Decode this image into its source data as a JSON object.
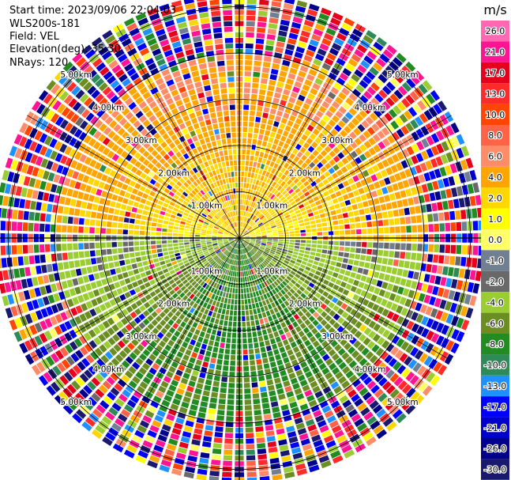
{
  "header": {
    "start_time": "Start time: 2023/09/06 22:04:03",
    "instrument": "WLS200s-181",
    "field": "Field: VEL",
    "elevation": "Elevation(deg): 35.30",
    "nrays": "NRays: 120"
  },
  "colorbar": {
    "unit": "m/s",
    "ticks": [
      "26.0",
      "21.0",
      "17.0",
      "13.0",
      "10.0",
      "8.0",
      "6.0",
      "4.0",
      "2.0",
      "1.0",
      "0.0",
      "-1.0",
      "-2.0",
      "-4.0",
      "-6.0",
      "-8.0",
      "-10.0",
      "-13.0",
      "-17.0",
      "-21.0",
      "-26.0",
      "-30.0"
    ],
    "colors": [
      "#ff69b4",
      "#ff1493",
      "#e6001c",
      "#ff2a2a",
      "#ff4500",
      "#ff6347",
      "#ff8c69",
      "#ffa500",
      "#ffd700",
      "#ffff00",
      "#ffff66",
      "#708090",
      "#696969",
      "#9acd32",
      "#6b8e23",
      "#228b22",
      "#2e8b57",
      "#1e90ff",
      "#0000ff",
      "#0000cd",
      "#00008b",
      "#191970"
    ]
  },
  "chart_data": {
    "type": "heatmap",
    "projection": "polar PPI",
    "field": "VEL",
    "unit": "m/s",
    "nrays": 120,
    "range_rings_km": [
      1.0,
      2.0,
      3.0,
      4.0,
      5.0
    ],
    "range_ring_labels": [
      "1.00km",
      "2.00km",
      "3.00km",
      "4.00km",
      "5.00km"
    ],
    "max_range_km": 5.3,
    "vmin": -30.0,
    "vmax": 26.0,
    "spoke_angles_deg": [
      0,
      30,
      60,
      90,
      120,
      150,
      180,
      210,
      240,
      270,
      300,
      330
    ],
    "pattern": {
      "north_sector_velocity_ms": 2.0,
      "south_sector_velocity_ms": -6.0,
      "noise_beyond_km": 4.0
    }
  }
}
